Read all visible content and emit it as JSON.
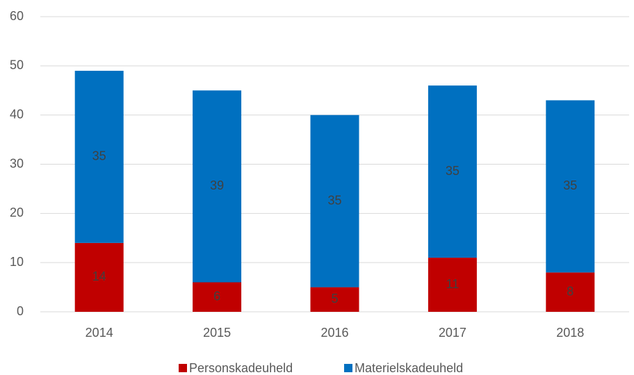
{
  "chart_data": {
    "type": "stacked_bar",
    "categories": [
      "2014",
      "2015",
      "2016",
      "2017",
      "2018"
    ],
    "series": [
      {
        "name": "Personskadeuheld",
        "color": "#c00000",
        "values": [
          14,
          6,
          5,
          11,
          8
        ]
      },
      {
        "name": "Materielskadeuheld",
        "color": "#0070c0",
        "values": [
          35,
          39,
          35,
          35,
          35
        ]
      }
    ],
    "ylim": [
      0,
      60
    ],
    "yticks": [
      0,
      10,
      20,
      30,
      40,
      50,
      60
    ],
    "grid": true,
    "legend": "bottom"
  }
}
